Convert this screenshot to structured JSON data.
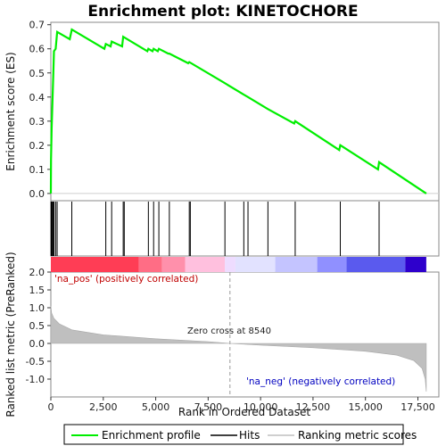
{
  "chart_data": {
    "type": "line",
    "title": "Enrichment plot: KINETOCHORE",
    "x_label": "Rank in Ordered Dataset",
    "x_range": [
      0,
      18500
    ],
    "x_ticks": [
      0,
      2500,
      5000,
      7500,
      10000,
      12500,
      15000,
      17500
    ],
    "x_tick_labels": [
      "0",
      "2,500",
      "5,000",
      "7,500",
      "10,000",
      "12,500",
      "15,000",
      "17,500"
    ],
    "dataset_size": 17900,
    "es_panel": {
      "ylabel": "Enrichment score (ES)",
      "ylim": [
        -0.03,
        0.71
      ],
      "y_ticks": [
        0.0,
        0.1,
        0.2,
        0.3,
        0.4,
        0.5,
        0.6,
        0.7
      ],
      "y_tick_labels": [
        "0.0",
        "0.1",
        "0.2",
        "0.3",
        "0.4",
        "0.5",
        "0.6",
        "0.7"
      ],
      "series_color": "#00ee00",
      "profile": [
        [
          0,
          0.0
        ],
        [
          10,
          0.14
        ],
        [
          40,
          0.27
        ],
        [
          80,
          0.39
        ],
        [
          120,
          0.5
        ],
        [
          150,
          0.59
        ],
        [
          230,
          0.6
        ],
        [
          300,
          0.67
        ],
        [
          900,
          0.64
        ],
        [
          1000,
          0.68
        ],
        [
          2550,
          0.6
        ],
        [
          2620,
          0.62
        ],
        [
          2850,
          0.61
        ],
        [
          2900,
          0.63
        ],
        [
          3400,
          0.61
        ],
        [
          3450,
          0.65
        ],
        [
          4600,
          0.59
        ],
        [
          4650,
          0.6
        ],
        [
          4850,
          0.59
        ],
        [
          4900,
          0.6
        ],
        [
          5100,
          0.59
        ],
        [
          5150,
          0.6
        ],
        [
          5600,
          0.58
        ],
        [
          5650,
          0.58
        ],
        [
          6550,
          0.54
        ],
        [
          6600,
          0.545
        ],
        [
          8250,
          0.46
        ],
        [
          9200,
          0.41
        ],
        [
          9400,
          0.4
        ],
        [
          10350,
          0.35
        ],
        [
          11600,
          0.29
        ],
        [
          11650,
          0.3
        ],
        [
          13750,
          0.18
        ],
        [
          13800,
          0.2
        ],
        [
          15600,
          0.1
        ],
        [
          15650,
          0.13
        ],
        [
          17900,
          0.0
        ]
      ]
    },
    "hits": [
      10,
      40,
      80,
      120,
      150,
      230,
      300,
      1000,
      2620,
      2900,
      3450,
      3500,
      4650,
      4900,
      5150,
      5650,
      6600,
      6650,
      8300,
      9200,
      9400,
      10350,
      11650,
      13800,
      15650
    ],
    "ranked_panel": {
      "ylabel": "Ranked list metric (PreRanked)",
      "ylim": [
        -1.5,
        2.0
      ],
      "y_ticks": [
        -1.0,
        -0.5,
        0.0,
        0.5,
        1.0,
        1.5,
        2.0
      ],
      "y_tick_labels": [
        "-1.0",
        "-0.5",
        "0.0",
        "0.5",
        "1.0",
        "1.5",
        "2.0"
      ],
      "metric_curve": [
        [
          0,
          1.05
        ],
        [
          40,
          0.85
        ],
        [
          150,
          0.7
        ],
        [
          400,
          0.55
        ],
        [
          1000,
          0.38
        ],
        [
          2500,
          0.24
        ],
        [
          5000,
          0.13
        ],
        [
          7500,
          0.05
        ],
        [
          8540,
          0.0
        ],
        [
          10000,
          -0.05
        ],
        [
          12500,
          -0.12
        ],
        [
          15000,
          -0.22
        ],
        [
          16500,
          -0.33
        ],
        [
          17300,
          -0.48
        ],
        [
          17700,
          -0.7
        ],
        [
          17850,
          -1.0
        ],
        [
          17900,
          -1.35
        ]
      ],
      "zero_cross": 8540,
      "zero_cross_label": "Zero cross at 8540",
      "pos_label": "'na_pos' (positively correlated)",
      "neg_label": "'na_neg' (negatively correlated)"
    },
    "color_bar": [
      {
        "x0": 0,
        "x1": 4200,
        "color": "#ff3d55"
      },
      {
        "x0": 4200,
        "x1": 5300,
        "color": "#ff6d85"
      },
      {
        "x0": 5300,
        "x1": 6400,
        "color": "#ff90ab"
      },
      {
        "x0": 6400,
        "x1": 8300,
        "color": "#ffc0de"
      },
      {
        "x0": 8300,
        "x1": 8800,
        "color": "#eedcff"
      },
      {
        "x0": 8800,
        "x1": 10700,
        "color": "#e2e2ff"
      },
      {
        "x0": 10700,
        "x1": 12700,
        "color": "#c4c4ff"
      },
      {
        "x0": 12700,
        "x1": 14100,
        "color": "#9090ff"
      },
      {
        "x0": 14100,
        "x1": 16900,
        "color": "#5a5aee"
      },
      {
        "x0": 16900,
        "x1": 17900,
        "color": "#2e00cc"
      }
    ],
    "legend": [
      {
        "name": "Enrichment profile",
        "color": "#00ee00"
      },
      {
        "name": "Hits",
        "color": "#000000"
      },
      {
        "name": "Ranking metric scores",
        "color": "#bfbfbf"
      }
    ]
  }
}
